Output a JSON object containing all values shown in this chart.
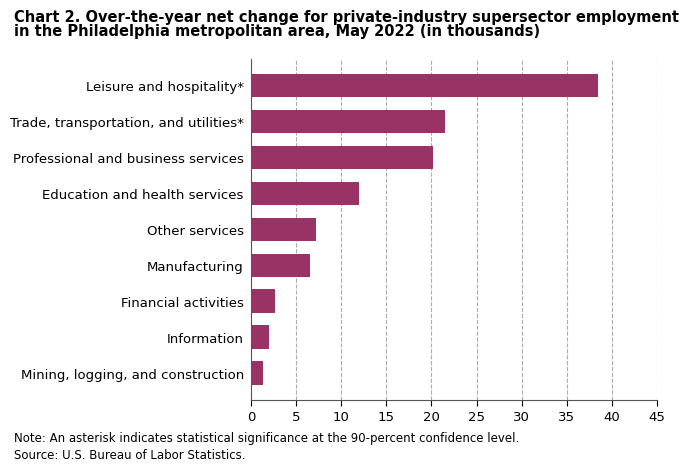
{
  "title_line1": "Chart 2. Over-the-year net change for private-industry supersector employment",
  "title_line2": "in the Philadelphia metropolitan area, May 2022 (in thousands)",
  "categories": [
    "Mining, logging, and construction",
    "Information",
    "Financial activities",
    "Manufacturing",
    "Other services",
    "Education and health services",
    "Professional and business services",
    "Trade, transportation, and utilities*",
    "Leisure and hospitality*"
  ],
  "values": [
    1.3,
    2.0,
    2.7,
    6.5,
    7.2,
    12.0,
    20.2,
    21.5,
    38.5
  ],
  "bar_color": "#993366",
  "xlim": [
    0,
    45
  ],
  "xticks": [
    0,
    5,
    10,
    15,
    20,
    25,
    30,
    35,
    40,
    45
  ],
  "note": "Note: An asterisk indicates statistical significance at the 90-percent confidence level.",
  "source": "Source: U.S. Bureau of Labor Statistics.",
  "title_fontsize": 10.5,
  "label_fontsize": 9.5,
  "tick_fontsize": 9.5,
  "note_fontsize": 8.5,
  "background_color": "#ffffff",
  "grid_color": "#aaaaaa"
}
